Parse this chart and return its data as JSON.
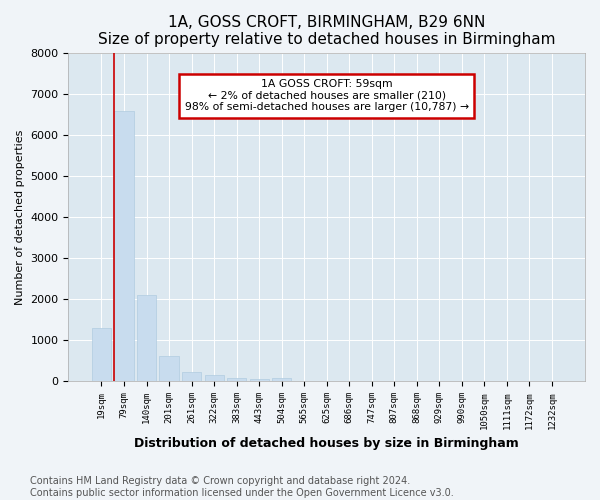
{
  "title": "1A, GOSS CROFT, BIRMINGHAM, B29 6NN",
  "subtitle": "Size of property relative to detached houses in Birmingham",
  "xlabel": "Distribution of detached houses by size in Birmingham",
  "ylabel": "Number of detached properties",
  "categories": [
    "19sqm",
    "79sqm",
    "140sqm",
    "201sqm",
    "261sqm",
    "322sqm",
    "383sqm",
    "443sqm",
    "504sqm",
    "565sqm",
    "625sqm",
    "686sqm",
    "747sqm",
    "807sqm",
    "868sqm",
    "929sqm",
    "990sqm",
    "1050sqm",
    "1111sqm",
    "1172sqm",
    "1232sqm"
  ],
  "values": [
    1300,
    6580,
    2090,
    610,
    215,
    155,
    75,
    55,
    85,
    0,
    0,
    0,
    0,
    0,
    0,
    0,
    0,
    0,
    0,
    0,
    0
  ],
  "bar_color": "#c8dcee",
  "bar_edge_color": "#b0cce0",
  "annotation_text": "1A GOSS CROFT: 59sqm\n← 2% of detached houses are smaller (210)\n98% of semi-detached houses are larger (10,787) →",
  "annotation_box_color": "#ffffff",
  "annotation_box_edge": "#cc0000",
  "red_line_bar_index": 1,
  "ylim": [
    0,
    8000
  ],
  "yticks": [
    0,
    1000,
    2000,
    3000,
    4000,
    5000,
    6000,
    7000,
    8000
  ],
  "footer": "Contains HM Land Registry data © Crown copyright and database right 2024.\nContains public sector information licensed under the Open Government Licence v3.0.",
  "background_color": "#f0f4f8",
  "plot_bg_color": "#dce8f0",
  "grid_color": "#ffffff",
  "title_fontsize": 11,
  "subtitle_fontsize": 10,
  "xlabel_fontsize": 9,
  "ylabel_fontsize": 8,
  "footer_fontsize": 7
}
